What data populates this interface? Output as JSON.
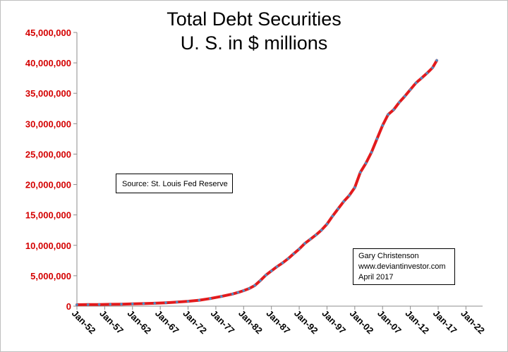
{
  "chart_data": {
    "type": "line",
    "title": "Total Debt Securities",
    "subtitle": "U. S. in $ millions",
    "xlabel": "",
    "ylabel": "",
    "x_start": 1952,
    "x_end": 2025,
    "ylim": [
      0,
      45000000
    ],
    "yticks": [
      0,
      5000000,
      10000000,
      15000000,
      20000000,
      25000000,
      30000000,
      35000000,
      40000000,
      45000000
    ],
    "ytick_labels": [
      "0",
      "5,000,000",
      "10,000,000",
      "15,000,000",
      "20,000,000",
      "25,000,000",
      "30,000,000",
      "35,000,000",
      "40,000,000",
      "45,000,000"
    ],
    "xticks": [
      1952,
      1957,
      1962,
      1967,
      1972,
      1977,
      1982,
      1987,
      1992,
      1997,
      2002,
      2007,
      2012,
      2017,
      2022
    ],
    "xtick_labels": [
      "Jan-52",
      "Jan-57",
      "Jan-62",
      "Jan-67",
      "Jan-72",
      "Jan-77",
      "Jan-82",
      "Jan-87",
      "Jan-92",
      "Jan-97",
      "Jan-02",
      "Jan-07",
      "Jan-12",
      "Jan-17",
      "Jan-22"
    ],
    "grid": false,
    "line_color": "#e31a1c",
    "marker_color": "#4a90c8",
    "series": [
      {
        "x": [
          1952,
          1954,
          1956,
          1958,
          1960,
          1962,
          1964,
          1966,
          1968,
          1970,
          1972,
          1974,
          1976,
          1978,
          1980,
          1981,
          1982,
          1983,
          1984,
          1985,
          1986,
          1987,
          1988,
          1989,
          1990,
          1991,
          1992,
          1993,
          1994,
          1995,
          1996,
          1997,
          1998,
          1999,
          2000,
          2001,
          2002,
          2003,
          2004,
          2005,
          2006,
          2007,
          2008,
          2009,
          2010,
          2011,
          2012,
          2013,
          2014,
          2015,
          2016,
          2016.75
        ],
        "y": [
          230000,
          250000,
          270000,
          300000,
          330000,
          370000,
          420000,
          480000,
          560000,
          670000,
          800000,
          980000,
          1250000,
          1600000,
          2000000,
          2250000,
          2550000,
          2900000,
          3400000,
          4200000,
          5100000,
          5800000,
          6500000,
          7100000,
          7800000,
          8600000,
          9400000,
          10300000,
          11000000,
          11700000,
          12500000,
          13500000,
          14800000,
          16000000,
          17200000,
          18200000,
          19500000,
          22000000,
          23500000,
          25300000,
          27500000,
          29700000,
          31500000,
          32300000,
          33500000,
          34500000,
          35600000,
          36700000,
          37500000,
          38300000,
          39200000,
          40400000
        ]
      }
    ],
    "annotations": {
      "source": "Source:  St. Louis Fed Reserve",
      "author_lines": [
        "Gary Christenson",
        "www.deviantinvestor.com",
        "April 2017"
      ]
    }
  }
}
